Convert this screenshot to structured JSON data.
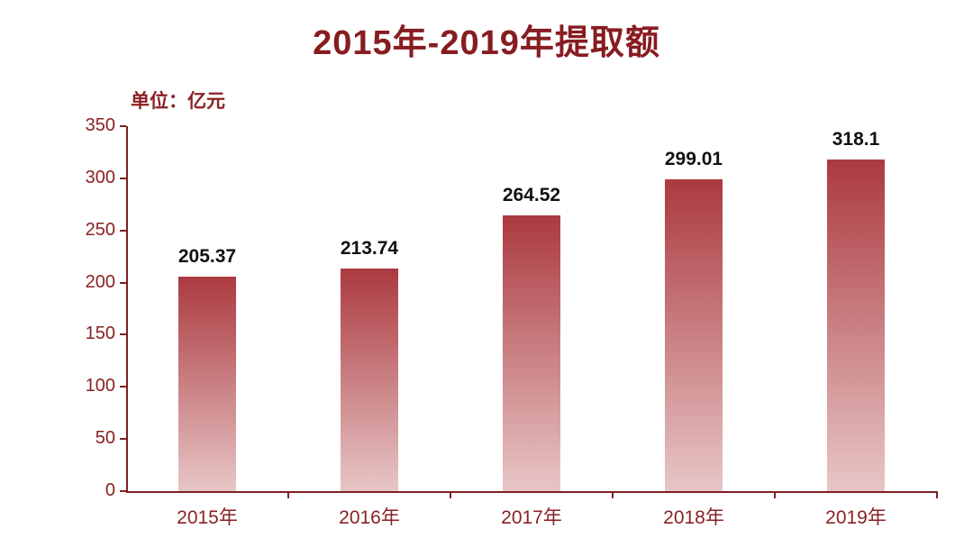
{
  "page": {
    "title": "2015年-2019年提取额",
    "unit_label": "单位：亿元"
  },
  "chart_data": {
    "type": "bar",
    "title": "2015年-2019年提取额",
    "unit_label": "单位：亿元",
    "categories": [
      "2015年",
      "2016年",
      "2017年",
      "2018年",
      "2019年"
    ],
    "values": [
      205.37,
      213.74,
      264.52,
      299.01,
      318.1
    ],
    "value_labels": [
      "205.37",
      "213.74",
      "264.52",
      "299.01",
      "318.1"
    ],
    "xlabel": "",
    "ylabel": "",
    "ylim": [
      0,
      350
    ],
    "yticks": [
      0,
      50,
      100,
      150,
      200,
      250,
      300,
      350
    ],
    "grid": false,
    "legend": "none",
    "colors": {
      "bar_top": "#ab3a40",
      "bar_bottom": "#e8c6c6",
      "axis": "#7d2022",
      "axis_text": "#8a2124",
      "title_text": "#871c21",
      "value_text": "#111111",
      "background": "#ffffff"
    }
  }
}
